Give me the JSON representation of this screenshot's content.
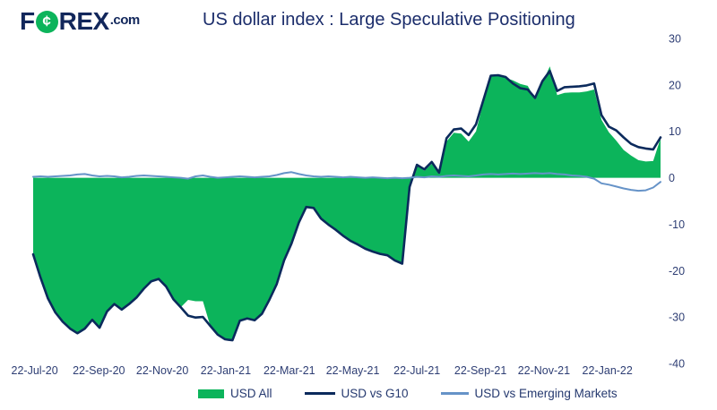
{
  "header": {
    "logo": {
      "part1": "F",
      "circle_glyph": "¢",
      "part2": "REX",
      "suffix": ".com"
    },
    "title": "US dollar index : Large Speculative Positioning"
  },
  "colors": {
    "green": "#0CB45B",
    "navy": "#0B2A5C",
    "light_blue": "#6693C8",
    "axis_text": "#2E3E74"
  },
  "legend": {
    "items": [
      {
        "label": "USD All",
        "type": "area",
        "color": "#0CB45B"
      },
      {
        "label": "USD vs G10",
        "type": "line",
        "color": "#0B2A5C"
      },
      {
        "label": "USD vs Emerging Markets",
        "type": "line",
        "color": "#6693C8"
      }
    ]
  },
  "chart_data": {
    "type": "area",
    "title": "US dollar index : Large Speculative Positioning",
    "xlabel": "",
    "ylabel": "",
    "ylim": [
      -40,
      30
    ],
    "y_ticks": [
      30,
      20,
      10,
      0,
      -10,
      -20,
      -30,
      -40
    ],
    "grid": false,
    "legend_position": "bottom",
    "weeks": 86,
    "x_tick_labels": [
      "22-Jul-20",
      "22-Sep-20",
      "22-Nov-20",
      "22-Jan-21",
      "22-Mar-21",
      "22-May-21",
      "22-Jul-21",
      "22-Sep-21",
      "22-Nov-21",
      "22-Jan-22"
    ],
    "x_tick_week_index": [
      0.2,
      8.9,
      17.5,
      26.1,
      34.7,
      43.3,
      52.0,
      60.6,
      69.2,
      77.8
    ],
    "series": [
      {
        "name": "USD All",
        "type": "area",
        "color_key": "green",
        "values": [
          -16.5,
          -21.5,
          -26.0,
          -29.0,
          -31.0,
          -32.5,
          -33.5,
          -32.5,
          -30.6,
          -32.3,
          -28.8,
          -27.2,
          -28.4,
          -27.2,
          -25.8,
          -23.9,
          -22.3,
          -21.8,
          -23.4,
          -26.2,
          -27.9,
          -26.3,
          -26.6,
          -26.6,
          -31.9,
          -33.8,
          -34.8,
          -35.0,
          -30.8,
          -30.3,
          -30.7,
          -29.3,
          -26.3,
          -22.9,
          -17.8,
          -14.2,
          -9.6,
          -6.3,
          -6.5,
          -8.8,
          -10.1,
          -11.2,
          -12.5,
          -13.6,
          -14.4,
          -15.3,
          -15.9,
          -16.4,
          -16.7,
          -17.8,
          -18.5,
          -2.0,
          2.6,
          1.5,
          3.0,
          0.8,
          7.8,
          9.7,
          9.5,
          7.8,
          10.0,
          16.3,
          21.8,
          22.0,
          21.5,
          21.0,
          20.2,
          19.8,
          17.0,
          20.5,
          24.0,
          17.8,
          18.3,
          18.4,
          18.4,
          18.6,
          19.0,
          12.5,
          9.8,
          8.0,
          6.0,
          4.8,
          3.8,
          3.5,
          3.6,
          8.5
        ]
      },
      {
        "name": "USD vs G10",
        "type": "line",
        "color_key": "navy",
        "values": [
          -16.5,
          -21.5,
          -26.0,
          -29.0,
          -31.0,
          -32.5,
          -33.5,
          -32.5,
          -30.6,
          -32.3,
          -28.8,
          -27.2,
          -28.4,
          -27.2,
          -25.8,
          -23.9,
          -22.3,
          -21.8,
          -23.4,
          -26.2,
          -27.9,
          -29.7,
          -30.1,
          -30.0,
          -31.9,
          -33.8,
          -34.8,
          -35.0,
          -30.8,
          -30.3,
          -30.7,
          -29.3,
          -26.3,
          -22.9,
          -17.8,
          -14.2,
          -9.6,
          -6.3,
          -6.5,
          -8.8,
          -10.1,
          -11.2,
          -12.5,
          -13.6,
          -14.4,
          -15.3,
          -15.9,
          -16.4,
          -16.7,
          -17.8,
          -18.5,
          -2.0,
          2.8,
          1.8,
          3.4,
          1.1,
          8.5,
          10.4,
          10.6,
          9.2,
          11.5,
          16.8,
          22.0,
          22.1,
          21.7,
          20.3,
          19.3,
          19.0,
          17.2,
          20.8,
          23.0,
          18.7,
          19.5,
          19.6,
          19.7,
          19.9,
          20.3,
          13.5,
          11.0,
          10.2,
          8.7,
          7.3,
          6.6,
          6.3,
          6.1,
          8.7
        ]
      },
      {
        "name": "USD vs Emerging Markets",
        "type": "line",
        "color_key": "light_blue",
        "values": [
          0.2,
          0.3,
          0.2,
          0.3,
          0.4,
          0.5,
          0.7,
          0.8,
          0.5,
          0.3,
          0.4,
          0.3,
          0.1,
          0.2,
          0.4,
          0.5,
          0.4,
          0.3,
          0.2,
          0.1,
          0.0,
          -0.2,
          0.3,
          0.5,
          0.2,
          0.0,
          0.1,
          0.2,
          0.3,
          0.2,
          0.1,
          0.2,
          0.3,
          0.6,
          1.0,
          1.2,
          0.8,
          0.5,
          0.3,
          0.2,
          0.3,
          0.2,
          0.1,
          0.2,
          0.1,
          0.0,
          0.1,
          0.0,
          -0.1,
          0.0,
          -0.1,
          0.0,
          0.2,
          0.1,
          0.3,
          0.2,
          0.4,
          0.5,
          0.4,
          0.3,
          0.5,
          0.7,
          0.8,
          0.7,
          0.8,
          0.9,
          0.8,
          0.9,
          1.0,
          0.9,
          1.0,
          0.8,
          0.7,
          0.5,
          0.4,
          0.2,
          -0.2,
          -1.2,
          -1.5,
          -1.9,
          -2.3,
          -2.6,
          -2.8,
          -2.7,
          -2.1,
          -0.9
        ]
      }
    ]
  }
}
